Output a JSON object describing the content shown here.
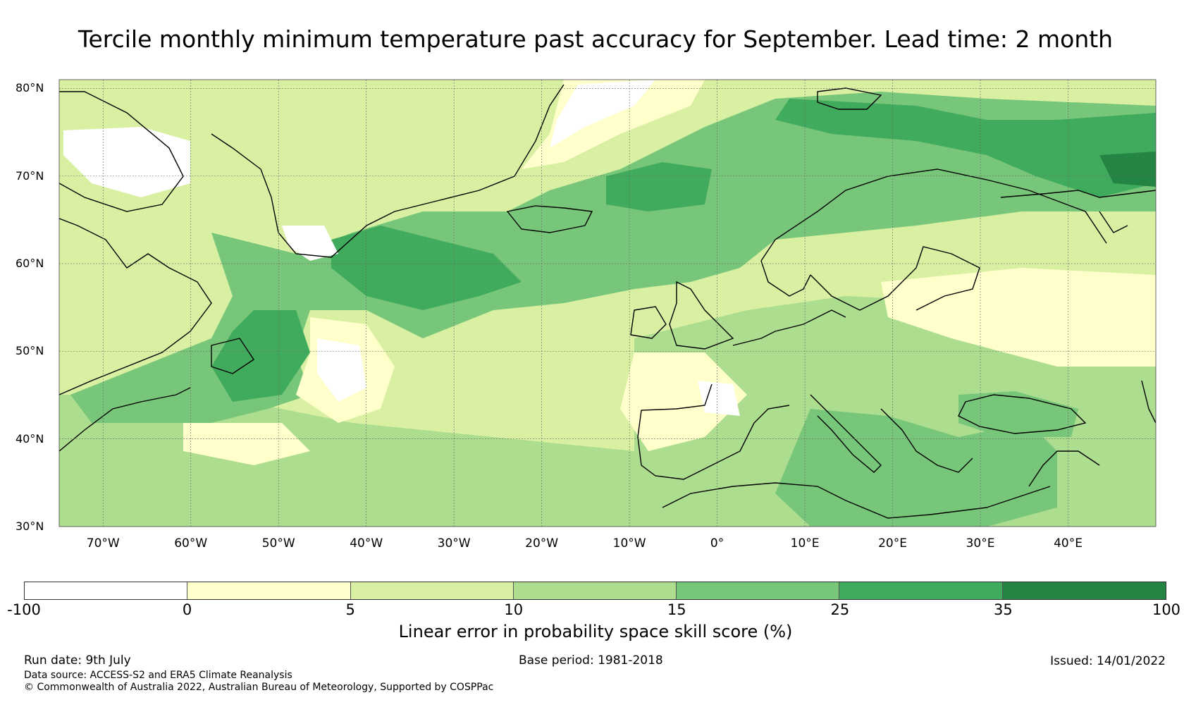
{
  "title": "Tercile monthly minimum temperature past accuracy for September. Lead time: 2 month",
  "map": {
    "lat_labels": [
      "80°N",
      "70°N",
      "60°N",
      "50°N",
      "40°N",
      "30°N"
    ],
    "lon_labels": [
      "70°W",
      "60°W",
      "50°W",
      "40°W",
      "30°W",
      "20°W",
      "10°W",
      "0°",
      "10°E",
      "20°E",
      "30°E",
      "40°E"
    ],
    "lat_range": [
      30,
      81
    ],
    "lon_range": [
      -75,
      50
    ],
    "gridlines": true
  },
  "colorbar": {
    "label": "Linear error in probability space skill score (%)",
    "ticks": [
      "-100",
      "0",
      "5",
      "10",
      "15",
      "25",
      "35",
      "100"
    ],
    "colors": [
      "#ffffff",
      "#ffffcc",
      "#d9f0a3",
      "#addd8e",
      "#78c679",
      "#41ab5d",
      "#238443"
    ]
  },
  "footer": {
    "run_date": "Run date: 9th July",
    "base_period": "Base period: 1981-2018",
    "issued": "Issued: 14/01/2022",
    "data_source": "Data source: ACCESS-S2 and ERA5 Climate Reanalysis",
    "copyright": "© Commonwealth of Australia 2022, Australian Bureau of Meteorology, Supported by COSPPac"
  }
}
